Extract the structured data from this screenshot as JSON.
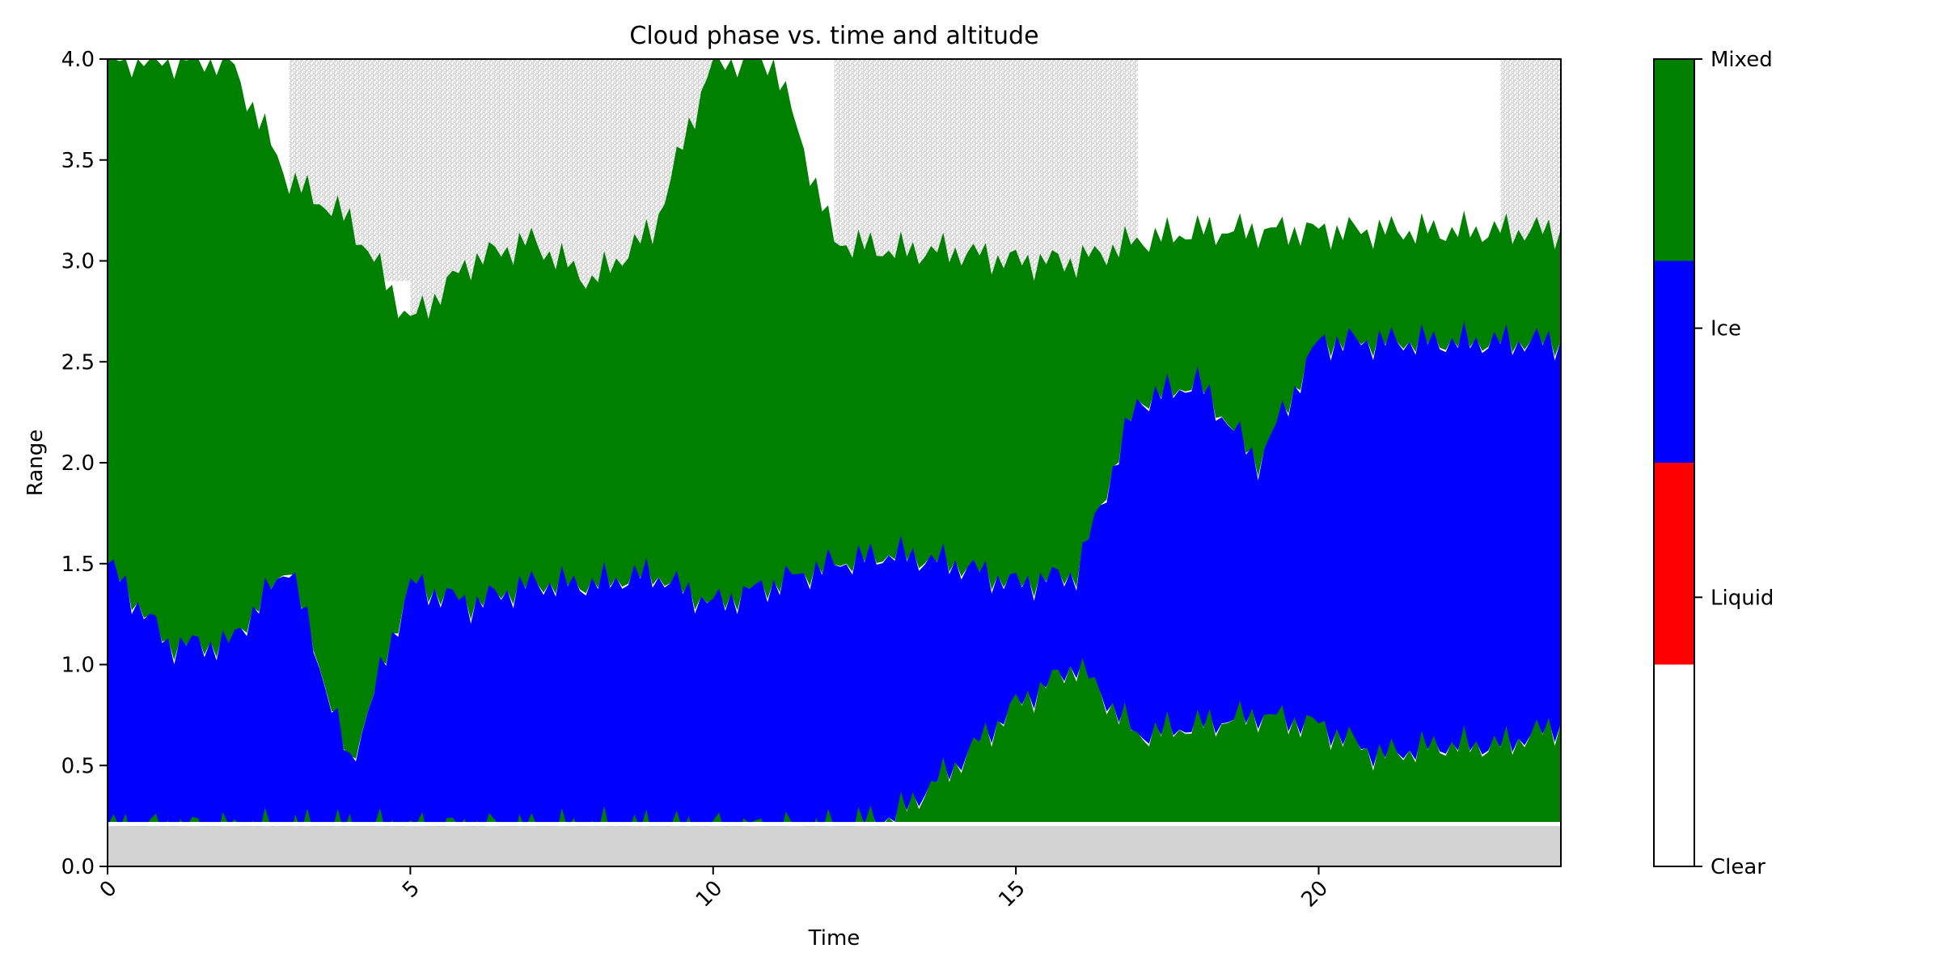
{
  "chart_data": {
    "type": "heatmap",
    "title": "Cloud phase vs. time and altitude",
    "xlabel": "Time",
    "ylabel": "Range",
    "xlim": [
      0,
      24
    ],
    "ylim": [
      0,
      4
    ],
    "x_ticks": [
      0,
      5,
      10,
      15,
      20
    ],
    "x_tick_labels": [
      "0",
      "5",
      "10",
      "15",
      "20"
    ],
    "y_ticks": [
      0.0,
      0.5,
      1.0,
      1.5,
      2.0,
      2.5,
      3.0,
      3.5,
      4.0
    ],
    "y_tick_labels": [
      "0.0",
      "0.5",
      "1.0",
      "1.5",
      "2.0",
      "2.5",
      "3.0",
      "3.5",
      "4.0"
    ],
    "no_data_color": "#d3d3d3",
    "no_data_below_range": 0.2,
    "categories": [
      {
        "label": "Clear",
        "color": "#ffffff"
      },
      {
        "label": "Liquid",
        "color": "#ff0000"
      },
      {
        "label": "Ice",
        "color": "#0000ff"
      },
      {
        "label": "Mixed",
        "color": "#008000"
      }
    ],
    "colorbar_labels": [
      "Clear",
      "Liquid",
      "Ice",
      "Mixed"
    ],
    "layers": {
      "time": [
        0,
        1,
        2,
        3,
        4,
        5,
        6,
        7,
        8,
        9,
        10,
        11,
        12,
        13,
        14,
        15,
        16,
        17,
        18,
        19,
        20,
        21,
        22,
        23,
        24
      ],
      "surface_top": [
        0.2,
        0.2,
        0.2,
        0.2,
        0.2,
        0.2,
        0.2,
        0.2,
        0.2,
        0.2,
        0.2,
        0.2,
        0.2,
        0.25,
        0.5,
        0.8,
        1.0,
        0.65,
        0.7,
        0.75,
        0.7,
        0.55,
        0.6,
        0.6,
        0.7
      ],
      "ice_top": [
        1.5,
        1.1,
        1.1,
        1.5,
        0.5,
        1.4,
        1.3,
        1.4,
        1.4,
        1.45,
        1.3,
        1.4,
        1.5,
        1.55,
        1.5,
        1.4,
        1.45,
        2.3,
        2.4,
        2.0,
        2.6,
        2.6,
        2.6,
        2.6,
        2.6
      ],
      "mixed_top": [
        4.0,
        4.0,
        4.0,
        3.4,
        3.2,
        2.7,
        3.0,
        3.1,
        2.9,
        3.15,
        4.0,
        4.0,
        3.1,
        3.05,
        3.05,
        3.0,
        3.0,
        3.1,
        3.15,
        3.15,
        3.15,
        3.15,
        3.15,
        3.15,
        3.15
      ],
      "upper_no_data": [
        false,
        false,
        false,
        true,
        true,
        true,
        true,
        true,
        true,
        true,
        false,
        false,
        true,
        true,
        true,
        true,
        true,
        false,
        false,
        false,
        false,
        false,
        false,
        true,
        true
      ]
    }
  }
}
